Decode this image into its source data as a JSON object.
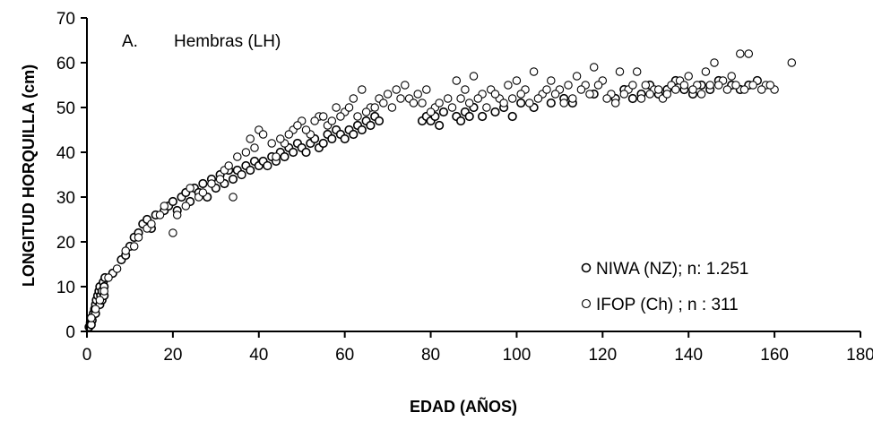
{
  "chart_data": {
    "type": "scatter",
    "panel_label": "A.",
    "title": "Hembras (LH)",
    "xlabel": "EDAD (AÑOS)",
    "ylabel": "LONGITUD HORQUILLA (cm)",
    "xlim": [
      0,
      180
    ],
    "ylim": [
      0,
      70
    ],
    "xticks": [
      0,
      20,
      40,
      60,
      80,
      100,
      120,
      140,
      160,
      180
    ],
    "yticks": [
      0,
      10,
      20,
      30,
      40,
      50,
      60,
      70
    ],
    "grid": false,
    "legend_position": "bottom-right",
    "series": [
      {
        "name": "NIWA (NZ); n: 1.251",
        "marker": "bold-circle",
        "points": [
          [
            0.5,
            1
          ],
          [
            0.8,
            2
          ],
          [
            1,
            3
          ],
          [
            1.2,
            2.5
          ],
          [
            1.5,
            4
          ],
          [
            1.8,
            5
          ],
          [
            2,
            6
          ],
          [
            2.2,
            7
          ],
          [
            2.5,
            8
          ],
          [
            2.8,
            9
          ],
          [
            3,
            10
          ],
          [
            3.2,
            8
          ],
          [
            3.5,
            9
          ],
          [
            3.8,
            11
          ],
          [
            4,
            10
          ],
          [
            4.2,
            12
          ],
          [
            1,
            1.5
          ],
          [
            2,
            4
          ],
          [
            3,
            6
          ],
          [
            3.5,
            7
          ],
          [
            4,
            8
          ],
          [
            6,
            13
          ],
          [
            8,
            16
          ],
          [
            9,
            17
          ],
          [
            10,
            19
          ],
          [
            11,
            21
          ],
          [
            12,
            22
          ],
          [
            13,
            24
          ],
          [
            14,
            25
          ],
          [
            15,
            23
          ],
          [
            16,
            26
          ],
          [
            18,
            27
          ],
          [
            19,
            28
          ],
          [
            20,
            29
          ],
          [
            21,
            27
          ],
          [
            22,
            30
          ],
          [
            23,
            31
          ],
          [
            24,
            29
          ],
          [
            25,
            32
          ],
          [
            26,
            31
          ],
          [
            27,
            33
          ],
          [
            28,
            30
          ],
          [
            29,
            34
          ],
          [
            30,
            32
          ],
          [
            31,
            35
          ],
          [
            32,
            33
          ],
          [
            33,
            36
          ],
          [
            34,
            34
          ],
          [
            35,
            36
          ],
          [
            36,
            35
          ],
          [
            37,
            37
          ],
          [
            38,
            36
          ],
          [
            39,
            38
          ],
          [
            40,
            37
          ],
          [
            41,
            38
          ],
          [
            42,
            37
          ],
          [
            43,
            39
          ],
          [
            44,
            38
          ],
          [
            45,
            40
          ],
          [
            46,
            39
          ],
          [
            47,
            41
          ],
          [
            48,
            40
          ],
          [
            49,
            42
          ],
          [
            50,
            41
          ],
          [
            51,
            40
          ],
          [
            52,
            42
          ],
          [
            53,
            43
          ],
          [
            54,
            41
          ],
          [
            55,
            42
          ],
          [
            56,
            44
          ],
          [
            57,
            43
          ],
          [
            58,
            45
          ],
          [
            59,
            44
          ],
          [
            60,
            43
          ],
          [
            61,
            45
          ],
          [
            62,
            44
          ],
          [
            63,
            46
          ],
          [
            64,
            45
          ],
          [
            65,
            47
          ],
          [
            66,
            46
          ],
          [
            67,
            48
          ],
          [
            68,
            47
          ],
          [
            78,
            47
          ],
          [
            79,
            48
          ],
          [
            80,
            47
          ],
          [
            81,
            48
          ],
          [
            82,
            46
          ],
          [
            83,
            49
          ],
          [
            86,
            48
          ],
          [
            87,
            47
          ],
          [
            88,
            49
          ],
          [
            89,
            48
          ],
          [
            90,
            50
          ],
          [
            92,
            48
          ],
          [
            95,
            49
          ],
          [
            97,
            50
          ],
          [
            99,
            48
          ],
          [
            101,
            51
          ],
          [
            104,
            50
          ],
          [
            108,
            51
          ],
          [
            111,
            52
          ],
          [
            113,
            51
          ],
          [
            118,
            53
          ],
          [
            123,
            52
          ],
          [
            125,
            54
          ],
          [
            127,
            52
          ],
          [
            129,
            53
          ],
          [
            131,
            55
          ],
          [
            133,
            53
          ],
          [
            135,
            54
          ],
          [
            137,
            56
          ],
          [
            139,
            54
          ],
          [
            141,
            53
          ],
          [
            143,
            55
          ],
          [
            145,
            54
          ],
          [
            147,
            56
          ],
          [
            150,
            55
          ],
          [
            152,
            54
          ],
          [
            154,
            55
          ],
          [
            156,
            56
          ]
        ]
      },
      {
        "name": "IFOP (Ch) ; n : 311",
        "marker": "circle",
        "points": [
          [
            1,
            3
          ],
          [
            2,
            5
          ],
          [
            3,
            7
          ],
          [
            4,
            9
          ],
          [
            5,
            12
          ],
          [
            9,
            18
          ],
          [
            12,
            21
          ],
          [
            14,
            23
          ],
          [
            17,
            26
          ],
          [
            20,
            22
          ],
          [
            21,
            26
          ],
          [
            23,
            28
          ],
          [
            26,
            30
          ],
          [
            29,
            33
          ],
          [
            32,
            36
          ],
          [
            34,
            30
          ],
          [
            36,
            35
          ],
          [
            38,
            43
          ],
          [
            40,
            45
          ],
          [
            42,
            37
          ],
          [
            44,
            39
          ],
          [
            46,
            42
          ],
          [
            48,
            45
          ],
          [
            50,
            47
          ],
          [
            52,
            44
          ],
          [
            54,
            48
          ],
          [
            56,
            46
          ],
          [
            58,
            50
          ],
          [
            60,
            49
          ],
          [
            62,
            52
          ],
          [
            64,
            54
          ],
          [
            66,
            50
          ],
          [
            68,
            52
          ],
          [
            70,
            53
          ],
          [
            72,
            54
          ],
          [
            74,
            55
          ],
          [
            75,
            52
          ],
          [
            77,
            53
          ],
          [
            79,
            54
          ],
          [
            81,
            50
          ],
          [
            84,
            52
          ],
          [
            86,
            56
          ],
          [
            88,
            54
          ],
          [
            90,
            57
          ],
          [
            92,
            53
          ],
          [
            94,
            54
          ],
          [
            96,
            52
          ],
          [
            98,
            55
          ],
          [
            100,
            56
          ],
          [
            102,
            54
          ],
          [
            104,
            58
          ],
          [
            106,
            53
          ],
          [
            108,
            56
          ],
          [
            110,
            54
          ],
          [
            112,
            55
          ],
          [
            114,
            57
          ],
          [
            116,
            55
          ],
          [
            118,
            59
          ],
          [
            120,
            56
          ],
          [
            122,
            53
          ],
          [
            124,
            58
          ],
          [
            126,
            54
          ],
          [
            128,
            58
          ],
          [
            130,
            55
          ],
          [
            132,
            54
          ],
          [
            134,
            52
          ],
          [
            136,
            55
          ],
          [
            138,
            56
          ],
          [
            140,
            57
          ],
          [
            142,
            55
          ],
          [
            144,
            58
          ],
          [
            146,
            60
          ],
          [
            148,
            56
          ],
          [
            150,
            57
          ],
          [
            152,
            62
          ],
          [
            154,
            62
          ],
          [
            156,
            56
          ],
          [
            158,
            55
          ],
          [
            160,
            54
          ],
          [
            164,
            60
          ],
          [
            7,
            14
          ],
          [
            11,
            19
          ],
          [
            15,
            24
          ],
          [
            18,
            28
          ],
          [
            24,
            32
          ],
          [
            27,
            31
          ],
          [
            31,
            34
          ],
          [
            33,
            37
          ],
          [
            35,
            39
          ],
          [
            37,
            40
          ],
          [
            39,
            41
          ],
          [
            41,
            44
          ],
          [
            43,
            42
          ],
          [
            45,
            43
          ],
          [
            47,
            44
          ],
          [
            49,
            46
          ],
          [
            51,
            45
          ],
          [
            53,
            47
          ],
          [
            55,
            48
          ],
          [
            57,
            47
          ],
          [
            59,
            48
          ],
          [
            61,
            50
          ],
          [
            63,
            48
          ],
          [
            65,
            49
          ],
          [
            67,
            50
          ],
          [
            69,
            51
          ],
          [
            71,
            50
          ],
          [
            73,
            52
          ],
          [
            76,
            51
          ],
          [
            78,
            51
          ],
          [
            80,
            49
          ],
          [
            82,
            51
          ],
          [
            85,
            50
          ],
          [
            87,
            52
          ],
          [
            89,
            51
          ],
          [
            91,
            52
          ],
          [
            93,
            50
          ],
          [
            95,
            53
          ],
          [
            97,
            51
          ],
          [
            99,
            52
          ],
          [
            101,
            53
          ],
          [
            103,
            51
          ],
          [
            105,
            52
          ],
          [
            107,
            54
          ],
          [
            109,
            53
          ],
          [
            111,
            51
          ],
          [
            113,
            52
          ],
          [
            115,
            54
          ],
          [
            117,
            53
          ],
          [
            119,
            55
          ],
          [
            121,
            52
          ],
          [
            123,
            51
          ],
          [
            125,
            53
          ],
          [
            127,
            55
          ],
          [
            129,
            52
          ],
          [
            131,
            53
          ],
          [
            133,
            54
          ],
          [
            135,
            53
          ],
          [
            137,
            54
          ],
          [
            139,
            55
          ],
          [
            141,
            54
          ],
          [
            143,
            53
          ],
          [
            145,
            55
          ],
          [
            147,
            55
          ],
          [
            149,
            54
          ],
          [
            151,
            55
          ],
          [
            153,
            54
          ],
          [
            155,
            55
          ],
          [
            157,
            54
          ],
          [
            159,
            55
          ]
        ]
      }
    ]
  }
}
